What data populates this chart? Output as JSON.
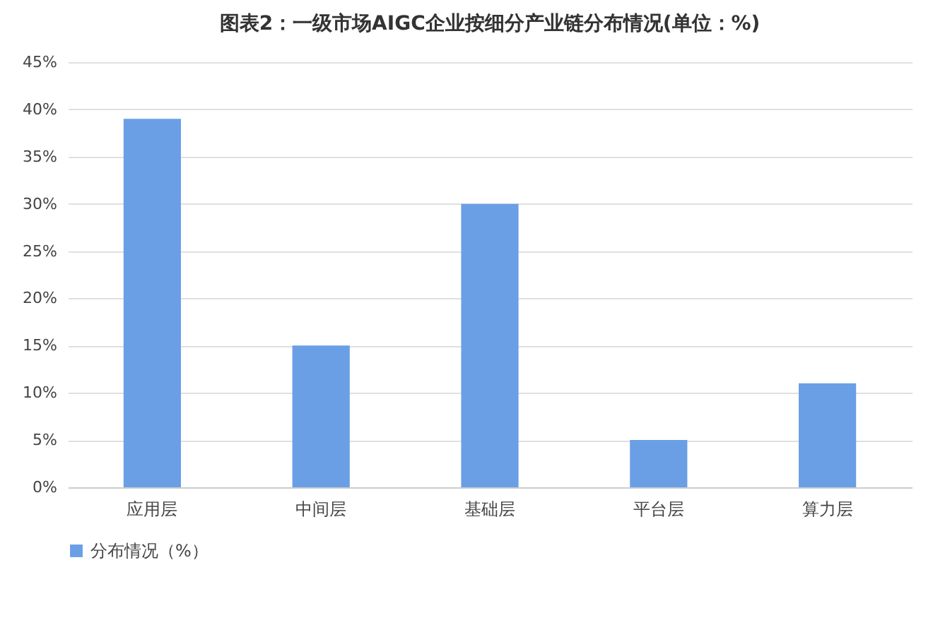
{
  "chart_data": {
    "type": "bar",
    "title": "图表2：一级市场AIGC企业按细分产业链分布情况(单位：%)",
    "categories": [
      "应用层",
      "中间层",
      "基础层",
      "平台层",
      "算力层"
    ],
    "series": [
      {
        "name": "分布情况（%）",
        "color": "#6a9fe6",
        "values": [
          39,
          15,
          30,
          5,
          11
        ]
      }
    ],
    "ylim": [
      0,
      45
    ],
    "yticks": [
      {
        "value": 0,
        "label": "0%"
      },
      {
        "value": 5,
        "label": "5%"
      },
      {
        "value": 10,
        "label": "10%"
      },
      {
        "value": 15,
        "label": "15%"
      },
      {
        "value": 20,
        "label": "20%"
      },
      {
        "value": 25,
        "label": "25%"
      },
      {
        "value": 30,
        "label": "30%"
      },
      {
        "value": 35,
        "label": "35%"
      },
      {
        "value": 40,
        "label": "40%"
      },
      {
        "value": 45,
        "label": "45%"
      }
    ],
    "grid": "y",
    "legend": "bottom"
  }
}
